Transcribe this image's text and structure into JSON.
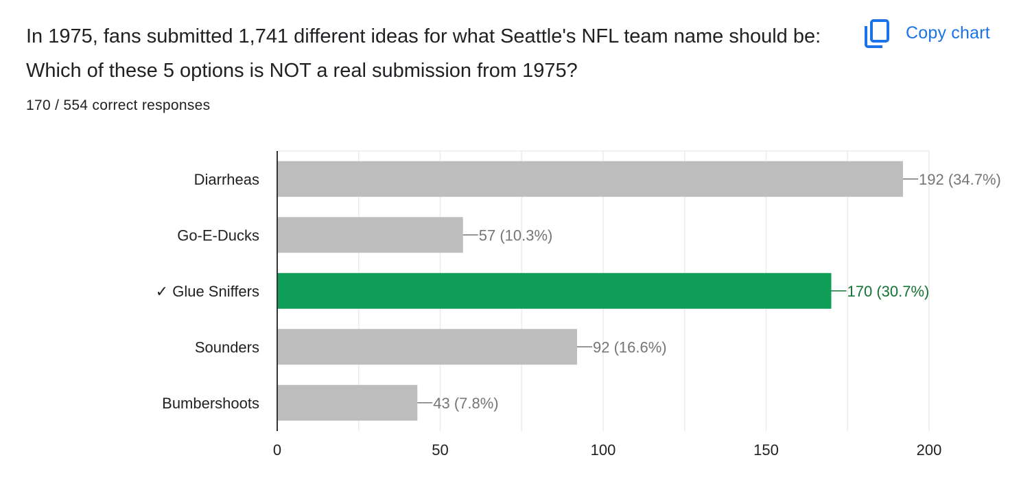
{
  "question": {
    "title": "In 1975, fans submitted 1,741 different ideas for what Seattle's NFL team name should be: Which of these 5 options is NOT a real submission from 1975?",
    "score_text": "170 / 554 correct responses"
  },
  "toolbar": {
    "copy_label": "Copy chart",
    "copy_icon": "copy-icon",
    "accent_color": "#1a73e8"
  },
  "chart_data": {
    "type": "bar",
    "orientation": "horizontal",
    "categories": [
      "Diarrheas",
      "Go-E-Ducks",
      "✓ Glue Sniffers",
      "Sounders",
      "Bumbershoots"
    ],
    "values": [
      192,
      57,
      170,
      92,
      43
    ],
    "data_labels": [
      "192 (34.7%)",
      "57 (10.3%)",
      "170 (30.7%)",
      "92 (16.6%)",
      "43 (7.8%)"
    ],
    "correct_index": 2,
    "xlim": [
      0,
      200
    ],
    "xticks": [
      0,
      50,
      100,
      150,
      200
    ],
    "grid": true,
    "colors": {
      "bar": "#bdbdbd",
      "correct_bar": "#0f9d58",
      "label": "#757575",
      "correct_label": "#137333",
      "category": "#202124",
      "axis": "#333333",
      "grid": "#ebebeb"
    }
  }
}
